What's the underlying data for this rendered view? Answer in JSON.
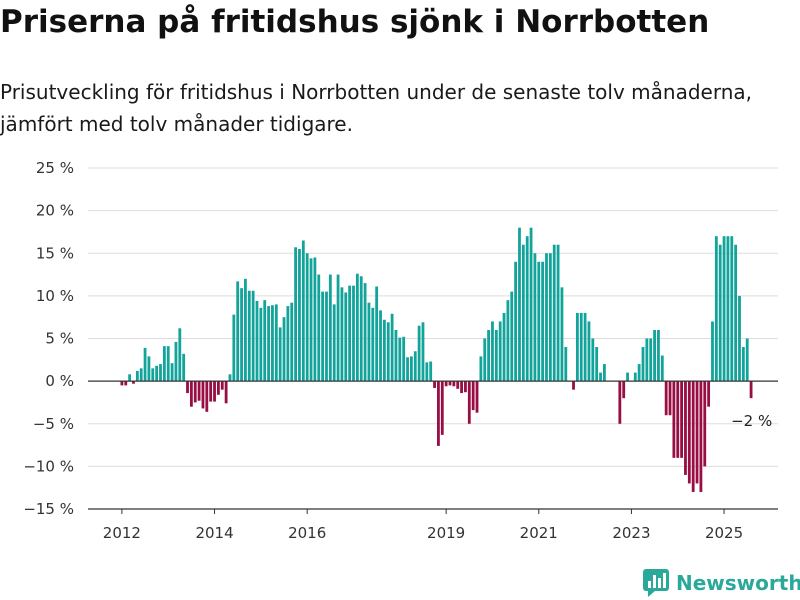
{
  "header": {
    "title": "Priserna på fritidshus sjönk i Norrbotten",
    "subtitle": "Prisutveckling för fritidshus i Norrbotten under de senaste tolv månaderna, jämfört med tolv månader tidigare."
  },
  "brand": {
    "name": "Newsworthy",
    "icon": "bar-chart-logo-icon"
  },
  "colors": {
    "positive": "#12a39a",
    "negative": "#980d43",
    "grid": "#dddddd",
    "axis": "#333333"
  },
  "chart_data": {
    "type": "bar",
    "title": "Priserna på fritidshus sjönk i Norrbotten",
    "xlabel": "",
    "ylabel": "",
    "ylim": [
      -15,
      25
    ],
    "yticks": [
      -15,
      -10,
      -5,
      0,
      5,
      10,
      15,
      20,
      25
    ],
    "ytick_labels": [
      "−15 %",
      "−10 %",
      "−5 %",
      "0 %",
      "5 %",
      "10 %",
      "15 %",
      "20 %",
      "25 %"
    ],
    "xticks": [
      "2012",
      "2014",
      "2016",
      "2019",
      "2021",
      "2023",
      "2025"
    ],
    "grid": true,
    "annotation": {
      "text": "−2 %",
      "value": -2
    },
    "series": [
      {
        "values": [
          -0.5,
          -0.5,
          0.8,
          -0.3,
          1.2,
          1.5,
          3.9,
          2.9,
          1.5,
          1.8,
          2.0,
          4.1,
          4.1,
          2.1,
          4.6,
          6.2,
          3.2,
          -1.4,
          -3.0,
          -2.5,
          -2.3,
          -3.2,
          -3.6,
          -2.4,
          -2.4,
          -1.6,
          -1.0,
          -2.6,
          0.8,
          7.8,
          11.7,
          10.9,
          12.0,
          10.6,
          10.6,
          9.4,
          8.6,
          9.5,
          8.8,
          8.9,
          9.0,
          6.3,
          7.5,
          8.8,
          9.2,
          15.7,
          15.5,
          16.5,
          15.0,
          14.4,
          14.5,
          12.5,
          10.5,
          10.5,
          12.5,
          9.0,
          12.5,
          11.0,
          10.4,
          11.2,
          11.2,
          12.6,
          12.3,
          11.5,
          9.2,
          8.6,
          11.1,
          8.3,
          7.2,
          6.9,
          7.9,
          6.0,
          5.1,
          5.2,
          2.8,
          2.9,
          3.5,
          6.5,
          6.9,
          2.2,
          2.3,
          -0.8,
          -7.6,
          -6.3,
          -0.6,
          -0.5,
          -0.6,
          -0.9,
          -1.4,
          -1.3,
          -5.0,
          -3.4,
          -3.7,
          2.9,
          5.0,
          6.0,
          7.0,
          6.0,
          7.0,
          8.0,
          9.5,
          10.5,
          14.0,
          18.0,
          16.0,
          17.0,
          18.0,
          15.0,
          14.0,
          14.0,
          15.0,
          15.0,
          16.0,
          16.0,
          11.0,
          4.0,
          0.0,
          -1.0,
          8.0,
          8.0,
          8.0,
          7.0,
          5.0,
          4.0,
          1.0,
          2.0,
          0.0,
          0.0,
          0.0,
          -5.0,
          -2.0,
          1.0,
          0.0,
          1.0,
          2.0,
          4.0,
          5.0,
          5.0,
          6.0,
          6.0,
          3.0,
          -4.0,
          -4.0,
          -9.0,
          -9.0,
          -9.0,
          -11.0,
          -12.0,
          -13.0,
          -12.0,
          -13.0,
          -10.0,
          -3.0,
          7.0,
          17.0,
          16.0,
          17.0,
          17.0,
          17.0,
          16.0,
          10.0,
          4.0,
          5.0,
          -2.0
        ]
      }
    ]
  }
}
